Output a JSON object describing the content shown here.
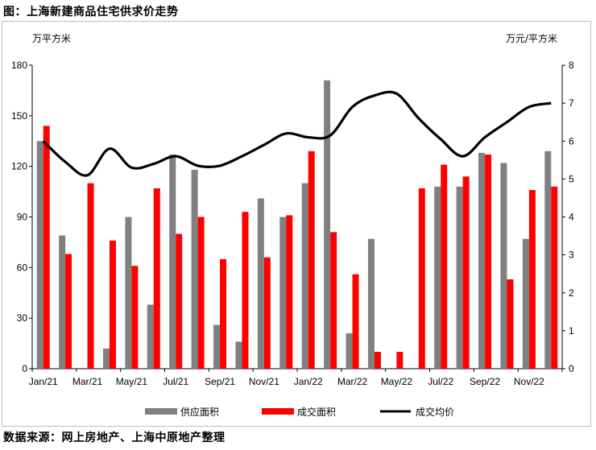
{
  "title": "图：上海新建商品住宅供求价走势",
  "source": "数据来源：网上房地产、上海中原地产整理",
  "chart_data": {
    "type": "bar",
    "categories": [
      "Jan/21",
      "Feb/21",
      "Mar/21",
      "Apr/21",
      "May/21",
      "Jun/21",
      "Jul/21",
      "Aug/21",
      "Sep/21",
      "Oct/21",
      "Nov/21",
      "Dec/21",
      "Jan/22",
      "Feb/22",
      "Mar/22",
      "Apr/22",
      "May/22",
      "Jun/22",
      "Jul/22",
      "Aug/22",
      "Sep/22",
      "Oct/22",
      "Nov/22",
      "Dec/22"
    ],
    "x_tick_labels": [
      "Jan/21",
      "Mar/21",
      "May/21",
      "Jul/21",
      "Sep/21",
      "Nov/21",
      "Jan/22",
      "Mar/22",
      "May/22",
      "Jul/22",
      "Sep/22",
      "Nov/22"
    ],
    "series": [
      {
        "name": "供应面积",
        "axis": "left",
        "color": "#808080",
        "values": [
          135,
          79,
          0,
          12,
          90,
          38,
          127,
          118,
          26,
          16,
          101,
          90,
          110,
          171,
          21,
          77,
          0,
          0,
          108,
          108,
          128,
          122,
          77,
          129
        ]
      },
      {
        "name": "成交面积",
        "axis": "left",
        "color": "#ff0000",
        "values": [
          144,
          68,
          110,
          76,
          61,
          107,
          80,
          90,
          65,
          93,
          66,
          91,
          129,
          81,
          56,
          10,
          10,
          107,
          121,
          114,
          127,
          53,
          106,
          108
        ]
      },
      {
        "name": "成交均价",
        "axis": "right",
        "type": "line",
        "color": "#000000",
        "values": [
          6.0,
          5.45,
          5.1,
          5.8,
          5.3,
          5.4,
          5.6,
          5.35,
          5.35,
          5.6,
          5.9,
          6.2,
          6.1,
          6.15,
          6.9,
          7.2,
          7.25,
          6.6,
          6.05,
          5.6,
          6.1,
          6.5,
          6.9,
          7.0
        ]
      }
    ],
    "ylabel_left": "万平方米",
    "ylabel_right": "万元/平方米",
    "ylim_left": [
      0,
      180
    ],
    "yticks_left": [
      0,
      30,
      60,
      90,
      120,
      150,
      180
    ],
    "ylim_right": [
      0,
      8
    ],
    "yticks_right": [
      0,
      1,
      2,
      3,
      4,
      5,
      6,
      7,
      8
    ],
    "grid": false,
    "legend_position": "bottom"
  }
}
